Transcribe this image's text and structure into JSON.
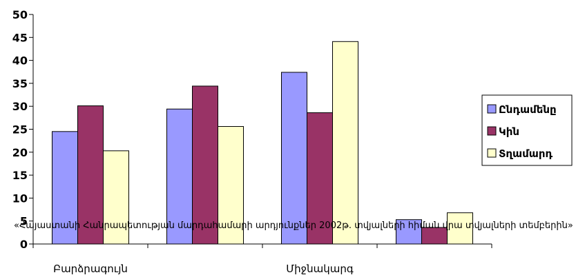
{
  "chart_data": {
    "type": "bar",
    "categories": [
      "Բարձրագույն",
      "",
      "Միջնակարգ",
      ""
    ],
    "series": [
      {
        "name": "Ընդամենը",
        "values": [
          24.5,
          29.4,
          37.4,
          5.3
        ],
        "color": "#9999FF"
      },
      {
        "name": "Կին",
        "values": [
          30.1,
          34.4,
          28.6,
          3.6
        ],
        "color": "#993366"
      },
      {
        "name": "Տղամարդ",
        "values": [
          20.3,
          25.6,
          44.1,
          6.8
        ],
        "color": "#FFFFCC"
      }
    ],
    "ylim": [
      0,
      50
    ],
    "yticks": [
      0,
      5,
      10,
      15,
      20,
      25,
      30,
      35,
      40,
      45,
      50
    ],
    "title": "",
    "xlabel": "",
    "ylabel": "",
    "legend": "right",
    "grid": false,
    "overlay_text": "«Հայաստանի Հանրապետության մարդահամարի արդյունքներ 2002թ. տվյալների հիման վրա  տվյալների  տեմբերին»"
  }
}
